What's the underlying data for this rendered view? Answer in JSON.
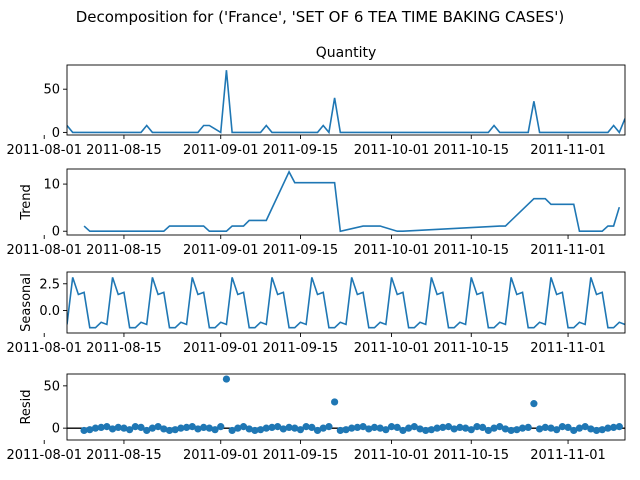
{
  "chart_data": {
    "type": "line",
    "suptitle": "Decomposition for ('France', 'SET OF 6 TEA TIME BAKING CASES')",
    "x_range": [
      "2011-08-05",
      "2011-11-11"
    ],
    "x_ticks": [
      "2011-08-01",
      "2011-08-15",
      "2011-09-01",
      "2011-09-15",
      "2011-10-01",
      "2011-10-15",
      "2011-11-01"
    ],
    "line_color": "#1f77b4",
    "panels": [
      {
        "id": "observed",
        "title": "Quantity",
        "ylabel": "",
        "kind": "line",
        "ylim": [
          -3,
          78
        ],
        "yticks": [
          0,
          50
        ],
        "x": [
          "2011-08-05",
          "2011-08-06",
          "2011-08-18",
          "2011-08-19",
          "2011-08-20",
          "2011-08-28",
          "2011-08-29",
          "2011-08-30",
          "2011-09-01",
          "2011-09-02",
          "2011-09-03",
          "2011-09-08",
          "2011-09-09",
          "2011-09-10",
          "2011-09-18",
          "2011-09-19",
          "2011-09-20",
          "2011-09-21",
          "2011-09-22",
          "2011-09-23",
          "2011-10-18",
          "2011-10-19",
          "2011-10-20",
          "2011-10-25",
          "2011-10-26",
          "2011-10-27",
          "2011-11-08",
          "2011-11-09",
          "2011-11-10",
          "2011-11-11"
        ],
        "y": [
          8,
          0,
          0,
          8,
          0,
          0,
          8,
          8,
          0,
          72,
          0,
          0,
          8,
          0,
          0,
          8,
          0,
          40,
          0,
          0,
          0,
          8,
          0,
          0,
          36,
          0,
          0,
          8,
          0,
          16
        ]
      },
      {
        "id": "trend",
        "title": "",
        "ylabel": "Trend",
        "kind": "line",
        "ylim": [
          -0.8,
          13.2
        ],
        "yticks": [
          0,
          10
        ],
        "x": [
          "2011-08-08",
          "2011-08-09",
          "2011-08-22",
          "2011-08-23",
          "2011-08-29",
          "2011-08-30",
          "2011-09-02",
          "2011-09-03",
          "2011-09-05",
          "2011-09-06",
          "2011-09-07",
          "2011-09-08",
          "2011-09-09",
          "2011-09-13",
          "2011-09-14",
          "2011-09-19",
          "2011-09-20",
          "2011-09-21",
          "2011-09-22",
          "2011-09-26",
          "2011-09-27",
          "2011-09-28",
          "2011-09-29",
          "2011-10-02",
          "2011-10-03",
          "2011-10-20",
          "2011-10-21",
          "2011-10-26",
          "2011-10-27",
          "2011-10-28",
          "2011-10-29",
          "2011-11-02",
          "2011-11-03",
          "2011-11-07",
          "2011-11-08",
          "2011-11-09",
          "2011-11-10"
        ],
        "y": [
          1.1,
          0,
          0,
          1.1,
          1.1,
          0,
          0,
          1.1,
          1.1,
          2.3,
          2.3,
          2.3,
          2.3,
          12.6,
          10.3,
          10.3,
          10.3,
          10.3,
          0,
          1.1,
          1.1,
          1.1,
          1.1,
          0,
          0,
          1.1,
          1.1,
          6.9,
          6.9,
          6.9,
          5.7,
          5.7,
          0,
          0,
          1.1,
          1.1,
          5.1
        ]
      },
      {
        "id": "seasonal",
        "title": "",
        "ylabel": "Seasonal",
        "kind": "line",
        "period_pattern": [
          -1.3,
          3.1,
          1.5,
          1.7,
          -1.6,
          -1.6,
          -1.1
        ],
        "ylim": [
          -2.1,
          3.6
        ],
        "yticks": [
          -0.0,
          2.5
        ],
        "ytick_labels": [
          "0.0",
          "2.5"
        ],
        "x_start": "2011-08-05",
        "x_end": "2011-11-11"
      },
      {
        "id": "resid",
        "title": "",
        "ylabel": "Resid",
        "kind": "scatter",
        "ylim": [
          -14,
          64
        ],
        "yticks": [
          0,
          50
        ],
        "zero_line": true,
        "outliers": [
          {
            "x": "2011-09-02",
            "y": 58
          },
          {
            "x": "2011-09-21",
            "y": 31
          },
          {
            "x": "2011-10-26",
            "y": 29
          }
        ],
        "x_start": "2011-08-08",
        "x_end": "2011-11-10"
      }
    ]
  }
}
